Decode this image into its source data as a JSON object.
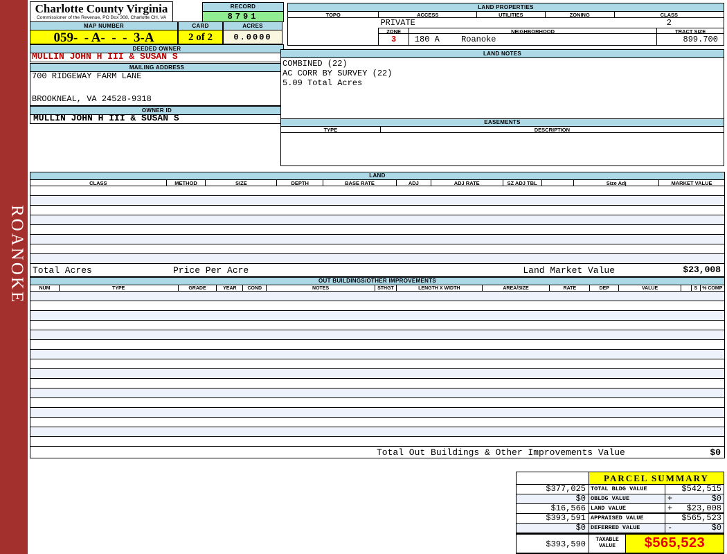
{
  "sidebar": {
    "label": "ROANOKE"
  },
  "header": {
    "county": "Charlotte County Virginia",
    "commissioner": "Commissioner of the Revenue, PO Box 308, Charlotte CH, VA",
    "record_label": "RECORD",
    "record_value": "8791",
    "map_number_label": "MAP NUMBER",
    "map_number_value": "059-  - A-  -  -  3-A",
    "card_label": "CARD",
    "card_value": "2 of 2",
    "acres_label": "ACRES",
    "acres_value": "0.0000"
  },
  "owner": {
    "deeded_owner_label": "DEEDED OWNER",
    "deeded_owner": "MULLIN JOHN H III & SUSAN S",
    "mailing_address_label": "MAILING ADDRESS",
    "address_line1": "700 RIDGEWAY FARM LANE",
    "address_line2": "BROOKNEAL, VA 24528-9318",
    "owner_id_label": "OWNER ID",
    "owner_id": "MULLIN JOHN H III & SUSAN S"
  },
  "land_properties": {
    "title": "LAND PROPERTIES",
    "headers": [
      "TOPO",
      "ACCESS",
      "UTILITIES",
      "ZONING",
      "CLASS"
    ],
    "access_value": "PRIVATE",
    "class_value": "2",
    "zone_label": "ZONE",
    "zone_value": "3",
    "neighborhood_label": "NEIGHBORHOOD",
    "neighborhood_code": "180 A",
    "neighborhood_name": "Roanoke",
    "tract_size_label": "TRACT SIZE",
    "tract_size_value": "899.700"
  },
  "land_notes": {
    "title": "LAND NOTES",
    "lines": [
      "COMBINED (22)",
      "AC CORR BY SURVEY (22)",
      "5.09 Total Acres"
    ]
  },
  "easements": {
    "title": "EASEMENTS",
    "headers": [
      "TYPE",
      "DESCRIPTION"
    ]
  },
  "land_table": {
    "title": "LAND",
    "headers": [
      "CLASS",
      "METHOD",
      "SIZE",
      "DEPTH",
      "BASE RATE",
      "ADJ",
      "ADJ RATE",
      "SZ ADJ TBL",
      "",
      "Size Adj",
      "MARKET VALUE"
    ],
    "empty_rows": 8,
    "total_acres_label": "Total Acres",
    "price_per_acre_label": "Price Per Acre",
    "market_value_label": "Land Market Value",
    "market_value": "$23,008"
  },
  "out_buildings": {
    "title": "OUT BUILDINGS/OTHER IMPROVEMENTS",
    "headers": [
      "NUM",
      "TYPE",
      "GRADE",
      "YEAR",
      "COND",
      "NOTES",
      "STHGT",
      "LENGTH X WIDTH",
      "AREA/SIZE",
      "RATE",
      "DEP",
      "VALUE",
      "",
      "S",
      "% COMP"
    ],
    "empty_rows": 16,
    "total_label": "Total Out Buildings & Other Improvements Value",
    "total_value": "$0"
  },
  "parcel_summary": {
    "title": "PARCEL SUMMARY",
    "rows": [
      {
        "prior": "$377,025",
        "label": "TOTAL BLDG VALUE",
        "operator": "",
        "value": "$542,515"
      },
      {
        "prior": "$0",
        "label": "OBLDG VALUE",
        "operator": "+",
        "value": "$0"
      },
      {
        "prior": "$16,566",
        "label": "LAND VALUE",
        "operator": "+",
        "value": "$23,008"
      },
      {
        "prior": "$393,591",
        "label": "APPRAISED VALUE",
        "operator": "",
        "value": "$565,523"
      },
      {
        "prior": "$0",
        "label": "DEFERRED VALUE",
        "operator": "-",
        "value": "$0"
      }
    ],
    "taxable": {
      "prior": "$393,590",
      "label": "TAXABLE VALUE",
      "value": "$565,523"
    }
  },
  "colors": {
    "sidebar_red": "#A3302C",
    "header_blue": "#ADD8E6",
    "record_green": "#90EE90",
    "highlight_yellow": "#FFFF00",
    "acres_cream": "#FAF7E0",
    "row_stripe": "#EEF2FA",
    "owner_red": "#C00000",
    "taxable_red": "#E80000"
  }
}
